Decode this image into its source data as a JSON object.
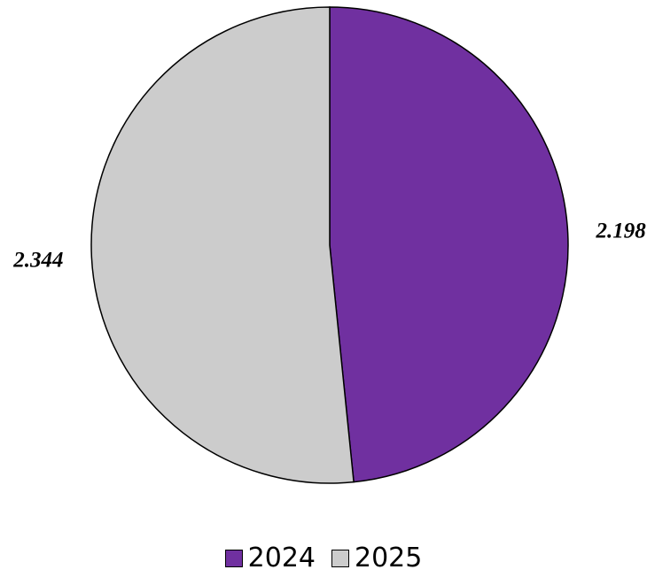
{
  "chart_data": {
    "type": "pie",
    "slices": [
      {
        "label": "2024",
        "value": 2.198,
        "value_label": "2.198",
        "color": "#7030a0"
      },
      {
        "label": "2025",
        "value": 2.344,
        "value_label": "2.344",
        "color": "#cccccc"
      }
    ],
    "start_angle_deg": 0,
    "direction": "clockwise",
    "legend_position": "bottom",
    "title": ""
  }
}
